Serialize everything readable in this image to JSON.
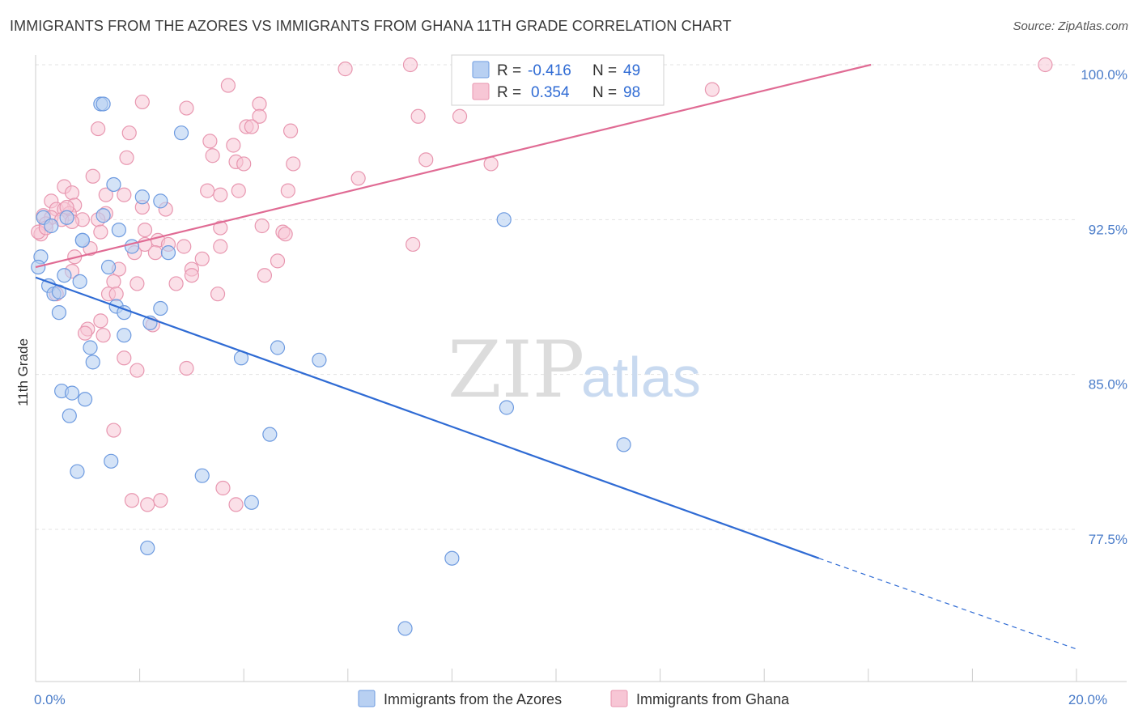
{
  "title": "IMMIGRANTS FROM THE AZORES VS IMMIGRANTS FROM GHANA 11TH GRADE CORRELATION CHART",
  "source": "Source: ZipAtlas.com",
  "watermark": {
    "zip": "ZIP",
    "atlas": "atlas"
  },
  "colors": {
    "azores_fill": "#b8d0f2",
    "azores_stroke": "#6e9be0",
    "azores_line": "#2f6bd4",
    "ghana_fill": "#f7c6d5",
    "ghana_stroke": "#e897b0",
    "ghana_line": "#e06b94",
    "grid": "#e3e3e3",
    "tick_text": "#4a7cc9"
  },
  "legend": {
    "rows": [
      {
        "r_label": "R =",
        "r_value": "-0.416",
        "n_label": "N =",
        "n_value": "49"
      },
      {
        "r_label": "R =",
        "r_value": "0.354",
        "n_label": "N =",
        "n_value": "98"
      }
    ]
  },
  "chart_data": {
    "type": "scatter",
    "title": "IMMIGRANTS FROM THE AZORES VS IMMIGRANTS FROM GHANA 11TH GRADE CORRELATION CHART",
    "xlabel": "",
    "ylabel": "11th Grade",
    "xlim": [
      0,
      20
    ],
    "ylim": [
      71.5,
      101.5
    ],
    "x_tick_labels": [
      {
        "value": 0,
        "label": "0.0%"
      },
      {
        "value": 20,
        "label": "20.0%"
      }
    ],
    "x_minor_ticks": [
      2,
      4,
      6,
      8,
      10,
      12,
      14,
      16,
      18,
      20
    ],
    "y_ticks": [
      {
        "value": 77.5,
        "label": "77.5%"
      },
      {
        "value": 85.0,
        "label": "85.0%"
      },
      {
        "value": 92.5,
        "label": "92.5%"
      },
      {
        "value": 100.0,
        "label": "100.0%"
      }
    ],
    "grid": true,
    "legend_placement": "top-center",
    "series": [
      {
        "name": "Immigrants from the Azores",
        "color": "#6e9be0",
        "trend": {
          "x0": 0,
          "y0": 89.7,
          "x1": 15.05,
          "y1": 76.1,
          "dash_to_x": 20,
          "dash_to_y": 71.7
        },
        "points": [
          {
            "x": 1.25,
            "y": 98.1
          },
          {
            "x": 1.3,
            "y": 98.1
          },
          {
            "x": 2.8,
            "y": 96.7
          },
          {
            "x": 1.5,
            "y": 94.2
          },
          {
            "x": 2.05,
            "y": 93.6
          },
          {
            "x": 2.4,
            "y": 93.4
          },
          {
            "x": 0.15,
            "y": 92.6
          },
          {
            "x": 0.6,
            "y": 92.6
          },
          {
            "x": 1.3,
            "y": 92.7
          },
          {
            "x": 9.0,
            "y": 92.5
          },
          {
            "x": 1.6,
            "y": 92.0
          },
          {
            "x": 0.9,
            "y": 91.5
          },
          {
            "x": 0.9,
            "y": 91.5
          },
          {
            "x": 2.55,
            "y": 90.9
          },
          {
            "x": 1.85,
            "y": 91.2
          },
          {
            "x": 0.1,
            "y": 90.7
          },
          {
            "x": 0.05,
            "y": 90.2
          },
          {
            "x": 1.4,
            "y": 90.2
          },
          {
            "x": 0.55,
            "y": 89.8
          },
          {
            "x": 0.85,
            "y": 89.5
          },
          {
            "x": 0.25,
            "y": 89.3
          },
          {
            "x": 0.35,
            "y": 88.9
          },
          {
            "x": 0.45,
            "y": 89.0
          },
          {
            "x": 1.55,
            "y": 88.3
          },
          {
            "x": 2.4,
            "y": 88.2
          },
          {
            "x": 0.45,
            "y": 88.0
          },
          {
            "x": 1.7,
            "y": 88.0
          },
          {
            "x": 2.2,
            "y": 87.5
          },
          {
            "x": 1.7,
            "y": 86.9
          },
          {
            "x": 1.05,
            "y": 86.3
          },
          {
            "x": 4.65,
            "y": 86.3
          },
          {
            "x": 3.95,
            "y": 85.8
          },
          {
            "x": 5.45,
            "y": 85.7
          },
          {
            "x": 1.1,
            "y": 85.6
          },
          {
            "x": 0.5,
            "y": 84.2
          },
          {
            "x": 0.7,
            "y": 84.1
          },
          {
            "x": 0.95,
            "y": 83.8
          },
          {
            "x": 9.05,
            "y": 83.4
          },
          {
            "x": 0.65,
            "y": 83.0
          },
          {
            "x": 4.5,
            "y": 82.1
          },
          {
            "x": 11.3,
            "y": 81.6
          },
          {
            "x": 1.45,
            "y": 80.8
          },
          {
            "x": 0.8,
            "y": 80.3
          },
          {
            "x": 3.2,
            "y": 80.1
          },
          {
            "x": 4.15,
            "y": 78.8
          },
          {
            "x": 2.15,
            "y": 76.6
          },
          {
            "x": 8.0,
            "y": 76.1
          },
          {
            "x": 7.1,
            "y": 72.7
          },
          {
            "x": 0.3,
            "y": 92.2
          }
        ]
      },
      {
        "name": "Immigrants from Ghana",
        "color": "#e897b0",
        "trend": {
          "x0": 0,
          "y0": 90.2,
          "x1": 16.05,
          "y1": 100.0
        },
        "points": [
          {
            "x": 7.2,
            "y": 100.0
          },
          {
            "x": 19.4,
            "y": 100.0
          },
          {
            "x": 5.95,
            "y": 99.8
          },
          {
            "x": 3.7,
            "y": 99.0
          },
          {
            "x": 13.0,
            "y": 98.8
          },
          {
            "x": 2.05,
            "y": 98.2
          },
          {
            "x": 4.3,
            "y": 98.1
          },
          {
            "x": 2.9,
            "y": 97.9
          },
          {
            "x": 4.3,
            "y": 97.5
          },
          {
            "x": 7.35,
            "y": 97.5
          },
          {
            "x": 8.15,
            "y": 97.5
          },
          {
            "x": 1.2,
            "y": 96.9
          },
          {
            "x": 1.8,
            "y": 96.7
          },
          {
            "x": 4.05,
            "y": 97.0
          },
          {
            "x": 4.15,
            "y": 97.0
          },
          {
            "x": 4.9,
            "y": 96.8
          },
          {
            "x": 3.35,
            "y": 96.3
          },
          {
            "x": 3.8,
            "y": 96.1
          },
          {
            "x": 3.4,
            "y": 95.6
          },
          {
            "x": 1.75,
            "y": 95.5
          },
          {
            "x": 7.5,
            "y": 95.4
          },
          {
            "x": 3.85,
            "y": 95.3
          },
          {
            "x": 4.0,
            "y": 95.2
          },
          {
            "x": 4.95,
            "y": 95.2
          },
          {
            "x": 8.75,
            "y": 95.2
          },
          {
            "x": 1.1,
            "y": 94.6
          },
          {
            "x": 6.2,
            "y": 94.5
          },
          {
            "x": 0.55,
            "y": 94.1
          },
          {
            "x": 3.3,
            "y": 93.9
          },
          {
            "x": 3.9,
            "y": 93.9
          },
          {
            "x": 4.85,
            "y": 93.9
          },
          {
            "x": 0.7,
            "y": 93.8
          },
          {
            "x": 1.35,
            "y": 93.7
          },
          {
            "x": 1.7,
            "y": 93.7
          },
          {
            "x": 3.55,
            "y": 93.7
          },
          {
            "x": 0.3,
            "y": 93.4
          },
          {
            "x": 0.75,
            "y": 93.2
          },
          {
            "x": 2.05,
            "y": 93.1
          },
          {
            "x": 0.4,
            "y": 93.0
          },
          {
            "x": 0.55,
            "y": 93.0
          },
          {
            "x": 2.5,
            "y": 93.0
          },
          {
            "x": 0.65,
            "y": 92.8
          },
          {
            "x": 0.15,
            "y": 92.7
          },
          {
            "x": 1.35,
            "y": 92.8
          },
          {
            "x": 0.3,
            "y": 92.6
          },
          {
            "x": 0.5,
            "y": 92.5
          },
          {
            "x": 0.9,
            "y": 92.5
          },
          {
            "x": 1.2,
            "y": 92.5
          },
          {
            "x": 0.2,
            "y": 92.3
          },
          {
            "x": 0.7,
            "y": 92.4
          },
          {
            "x": 3.55,
            "y": 92.1
          },
          {
            "x": 4.35,
            "y": 92.2
          },
          {
            "x": 2.1,
            "y": 92.0
          },
          {
            "x": 4.75,
            "y": 91.9
          },
          {
            "x": 4.8,
            "y": 91.8
          },
          {
            "x": 0.1,
            "y": 91.8
          },
          {
            "x": 1.25,
            "y": 91.9
          },
          {
            "x": 2.35,
            "y": 91.5
          },
          {
            "x": 2.1,
            "y": 91.3
          },
          {
            "x": 2.55,
            "y": 91.3
          },
          {
            "x": 7.25,
            "y": 91.3
          },
          {
            "x": 3.55,
            "y": 91.2
          },
          {
            "x": 1.05,
            "y": 91.1
          },
          {
            "x": 2.85,
            "y": 91.2
          },
          {
            "x": 1.9,
            "y": 90.9
          },
          {
            "x": 2.3,
            "y": 90.9
          },
          {
            "x": 0.75,
            "y": 90.7
          },
          {
            "x": 3.2,
            "y": 90.6
          },
          {
            "x": 4.65,
            "y": 90.5
          },
          {
            "x": 1.6,
            "y": 90.1
          },
          {
            "x": 3.0,
            "y": 90.1
          },
          {
            "x": 0.7,
            "y": 90.0
          },
          {
            "x": 3.0,
            "y": 89.8
          },
          {
            "x": 4.4,
            "y": 89.8
          },
          {
            "x": 1.5,
            "y": 89.5
          },
          {
            "x": 1.95,
            "y": 89.4
          },
          {
            "x": 2.7,
            "y": 89.4
          },
          {
            "x": 1.4,
            "y": 88.9
          },
          {
            "x": 1.55,
            "y": 88.9
          },
          {
            "x": 3.5,
            "y": 88.9
          },
          {
            "x": 0.4,
            "y": 88.9
          },
          {
            "x": 1.25,
            "y": 87.6
          },
          {
            "x": 2.25,
            "y": 87.4
          },
          {
            "x": 1.0,
            "y": 87.2
          },
          {
            "x": 0.95,
            "y": 87.0
          },
          {
            "x": 1.3,
            "y": 86.9
          },
          {
            "x": 1.7,
            "y": 85.8
          },
          {
            "x": 1.95,
            "y": 85.2
          },
          {
            "x": 2.9,
            "y": 85.3
          },
          {
            "x": 1.5,
            "y": 82.3
          },
          {
            "x": 3.6,
            "y": 79.5
          },
          {
            "x": 1.85,
            "y": 78.9
          },
          {
            "x": 2.4,
            "y": 78.9
          },
          {
            "x": 2.15,
            "y": 78.7
          },
          {
            "x": 3.85,
            "y": 78.7
          },
          {
            "x": 0.05,
            "y": 91.9
          },
          {
            "x": 0.2,
            "y": 92.1
          },
          {
            "x": 0.6,
            "y": 93.1
          }
        ]
      }
    ]
  }
}
